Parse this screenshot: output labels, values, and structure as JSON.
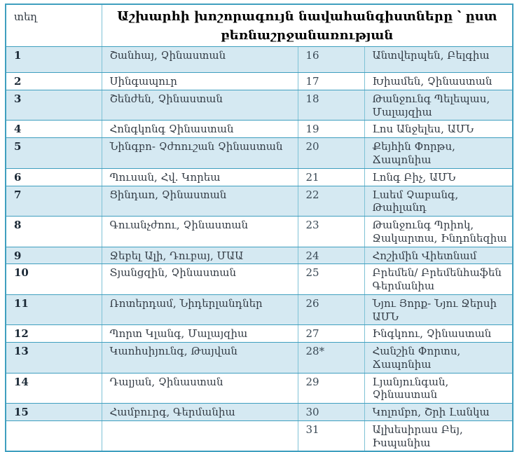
{
  "table": {
    "corner_label": "տեղ",
    "title": "Աշխարհի խոշորագույն նավահանգիստները ՝ ըստ բեռնաշրջանառության",
    "rows": [
      {
        "rank_left": "1",
        "port_left": "Շանհայ, Չինաստան",
        "rank_right": "16",
        "port_right": "Անտվերպեն, Բելգիա"
      },
      {
        "rank_left": "2",
        "port_left": "Սինգապուր",
        "rank_right": "17",
        "port_right": "Խիամեն, Չինաստան"
      },
      {
        "rank_left": "3",
        "port_left": "Շենժեն, Չինաստան",
        "rank_right": "18",
        "port_right": "Թանջունգ Պելեպաս, Մալայզիա"
      },
      {
        "rank_left": "4",
        "port_left": "Հոնգկոնգ Չինաստան",
        "rank_right": "19",
        "port_right": "Լոս Անջելես, ԱՄՆ"
      },
      {
        "rank_left": "5",
        "port_left": "Նինգբո- Չժոուշան Չինաստան",
        "rank_right": "20",
        "port_right": "Քեյհին Փորթս, Ճապոնիա"
      },
      {
        "rank_left": "6",
        "port_left": "Պուսան, Հվ. Կորեա",
        "rank_right": "21",
        "port_right": "Լոնգ Բիչ, ԱՄՆ"
      },
      {
        "rank_left": "7",
        "port_left": "Ցինդաո, Չինաստան",
        "rank_right": "22",
        "port_right": "Լաեմ Չաբանգ, Թաիլանդ"
      },
      {
        "rank_left": "8",
        "port_left": "Գուանչժոու, Չինաստան",
        "rank_right": "23",
        "port_right": "Թանջունգ Պրիոկ, Ջակարտա, Ինդոնեզիա"
      },
      {
        "rank_left": "9",
        "port_left": "Ջեբել Ալի, Դուբայ, ՄԱԱ",
        "rank_right": "24",
        "port_right": "Հոշիմին Վիետնամ"
      },
      {
        "rank_left": "10",
        "port_left": "Տյանցզին, Չինաստան",
        "rank_right": "25",
        "port_right": "Բրեմեն/ Բրեմենհաֆեն Գերմանիա"
      },
      {
        "rank_left": "11",
        "port_left": "Ռոտերդամ, Նիդերլանդներ",
        "rank_right": "26",
        "port_right": "Նյու Յորք- Նյու Ջերսի ԱՄՆ"
      },
      {
        "rank_left": "12",
        "port_left": "Պորտ Կլանգ, Մալայզիա",
        "rank_right": "27",
        "port_right": "Ինգկոու, Չինաստան"
      },
      {
        "rank_left": "13",
        "port_left": "Կաոհսիյունգ, Թայվան",
        "rank_right": "28*",
        "port_right": "Հանշին Փորտս, Ճապոնիա"
      },
      {
        "rank_left": "14",
        "port_left": "Դալյան, Չինաստան",
        "rank_right": "29",
        "port_right": "Լյանյունգան, Չինաստան"
      },
      {
        "rank_left": "15",
        "port_left": "Համբուրգ, Գերմանիա",
        "rank_right": "30",
        "port_right": "Կոլոմբո, Շրի Լանկա"
      },
      {
        "rank_left": "",
        "port_left": "",
        "rank_right": "31",
        "port_right": "Ալխեսիրաս Բեյ, Իսպանիա"
      }
    ]
  },
  "colors": {
    "border": "#3f9fbf",
    "border_light": "#7fc2d6",
    "stripe": "#d5e9f2",
    "title_text": "#000000",
    "body_text": "#333b44"
  }
}
